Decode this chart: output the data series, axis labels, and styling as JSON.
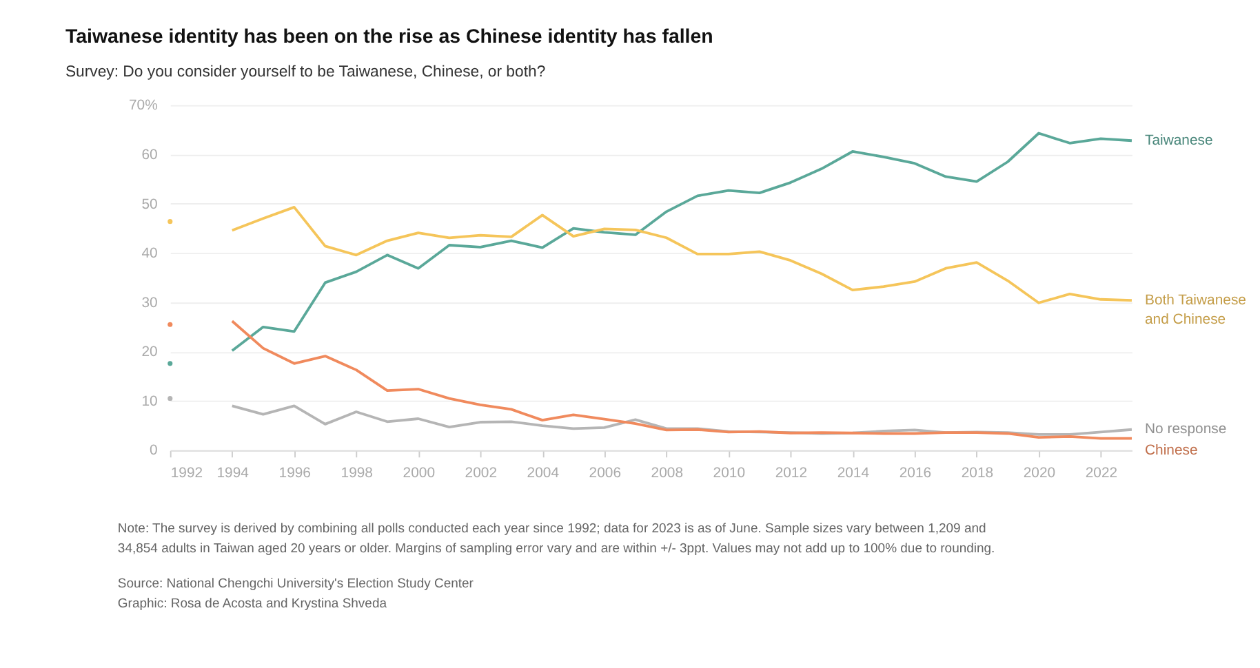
{
  "chart_data": {
    "type": "line",
    "title": "Taiwanese identity has been on the rise as Chinese identity has fallen",
    "subtitle": "Survey: Do you consider yourself to be Taiwanese, Chinese, or both?",
    "x": [
      1992,
      1993,
      1994,
      1995,
      1996,
      1997,
      1998,
      1999,
      2000,
      2001,
      2002,
      2003,
      2004,
      2005,
      2006,
      2007,
      2008,
      2009,
      2010,
      2011,
      2012,
      2013,
      2014,
      2015,
      2016,
      2017,
      2018,
      2019,
      2020,
      2021,
      2022,
      2023
    ],
    "series": [
      {
        "name": "Taiwanese",
        "color": "#5aa899",
        "values": [
          17.6,
          null,
          20.2,
          25.0,
          24.1,
          34.0,
          36.2,
          39.6,
          36.9,
          41.6,
          41.2,
          42.5,
          41.1,
          45.0,
          44.2,
          43.7,
          48.4,
          51.6,
          52.7,
          52.2,
          54.3,
          57.1,
          60.6,
          59.5,
          58.2,
          55.5,
          54.5,
          58.5,
          64.3,
          62.3,
          63.2,
          62.8
        ]
      },
      {
        "name": "Both Taiwanese\nand Chinese",
        "color": "#f5c55a",
        "values": [
          46.4,
          null,
          44.6,
          47.0,
          49.3,
          41.4,
          39.6,
          42.5,
          44.1,
          43.1,
          43.6,
          43.3,
          47.7,
          43.4,
          44.9,
          44.7,
          43.1,
          39.8,
          39.8,
          40.3,
          38.5,
          35.8,
          32.5,
          33.2,
          34.2,
          36.9,
          38.1,
          34.4,
          29.9,
          31.7,
          30.6,
          30.4
        ]
      },
      {
        "name": "No response",
        "color": "#b5b5b5",
        "values": [
          10.5,
          null,
          9.0,
          7.3,
          9.0,
          5.3,
          7.8,
          5.8,
          6.4,
          4.7,
          5.7,
          5.8,
          5.0,
          4.4,
          4.6,
          6.2,
          4.4,
          4.4,
          3.8,
          3.7,
          3.6,
          3.4,
          3.5,
          3.9,
          4.1,
          3.6,
          3.7,
          3.6,
          3.2,
          3.2,
          3.7,
          4.2
        ]
      },
      {
        "name": "Chinese",
        "color": "#f08a5d",
        "values": [
          25.5,
          null,
          26.2,
          20.7,
          17.6,
          19.1,
          16.3,
          12.1,
          12.4,
          10.5,
          9.2,
          8.3,
          6.1,
          7.2,
          6.3,
          5.4,
          4.1,
          4.2,
          3.7,
          3.8,
          3.5,
          3.6,
          3.5,
          3.4,
          3.4,
          3.6,
          3.6,
          3.4,
          2.6,
          2.8,
          2.4,
          2.4
        ]
      }
    ],
    "xlim": [
      1992,
      2023
    ],
    "xticks": [
      1992,
      1994,
      1996,
      1998,
      2000,
      2002,
      2004,
      2006,
      2008,
      2010,
      2012,
      2014,
      2016,
      2018,
      2020,
      2022
    ],
    "ylim": [
      0,
      70
    ],
    "yticks": [
      0,
      10,
      20,
      30,
      40,
      50,
      60,
      {
        "value": 70,
        "label": "70%"
      }
    ],
    "grid": "y",
    "annotations": [
      "Note: The survey is derived by combining all polls conducted each year since 1992; data for 2023 is as of June. Sample sizes vary between 1,209 and 34,854 adults in Taiwan aged 20 years or older. Margins of sampling error vary and are within +/- 3ppt. Values may not add up to 100% due to rounding.",
      "Source: National Chengchi University's Election Study Center",
      "Graphic: Rosa de Acosta and Krystina Shveda"
    ]
  }
}
